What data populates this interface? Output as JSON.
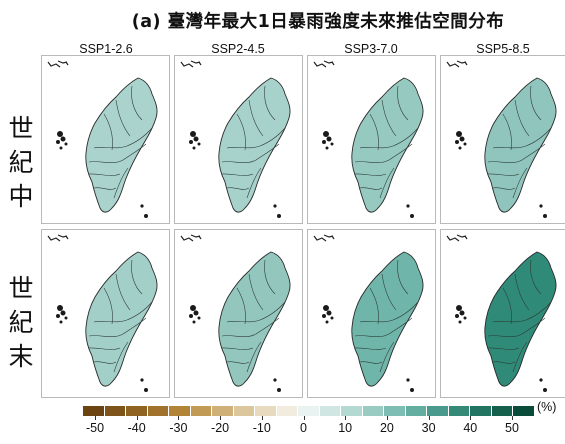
{
  "title": "(a) 臺灣年最大1日暴雨強度未來推估空間分布",
  "scenarios": [
    "SSP1-2.6",
    "SSP2-4.5",
    "SSP3-7.0",
    "SSP5-8.5"
  ],
  "periods": [
    {
      "label": "世紀中",
      "chars": [
        "世",
        "紀",
        "中"
      ]
    },
    {
      "label": "世紀末",
      "chars": [
        "世",
        "紀",
        "末"
      ]
    }
  ],
  "panels": [
    [
      {
        "change_percent": 10,
        "color": "#a9d3cc"
      },
      {
        "change_percent": 10,
        "color": "#a7d2cb"
      },
      {
        "change_percent": 15,
        "color": "#96c9c0"
      },
      {
        "change_percent": 15,
        "color": "#8fc5bc"
      }
    ],
    [
      {
        "change_percent": 10,
        "color": "#a2cfc8"
      },
      {
        "change_percent": 15,
        "color": "#93c7be"
      },
      {
        "change_percent": 25,
        "color": "#6fb5a9"
      },
      {
        "change_percent": 40,
        "color": "#2f8a77"
      }
    ]
  ],
  "colorbar": {
    "ticks": [
      "-50",
      "-40",
      "-30",
      "-20",
      "-10",
      "0",
      "10",
      "20",
      "30",
      "40",
      "50"
    ],
    "unit": "(%)",
    "colors": [
      "#6b4412",
      "#7d5419",
      "#8f6321",
      "#a0722b",
      "#b18438",
      "#c19a55",
      "#cfb077",
      "#dcc69b",
      "#e8dabf",
      "#f2ecdf",
      "#e9f3f1",
      "#cfe6e2",
      "#b4d9d3",
      "#99cbc3",
      "#7ebdb3",
      "#63ada1",
      "#4a9b8d",
      "#358977",
      "#237461",
      "#15604d",
      "#0a4c3a"
    ]
  }
}
